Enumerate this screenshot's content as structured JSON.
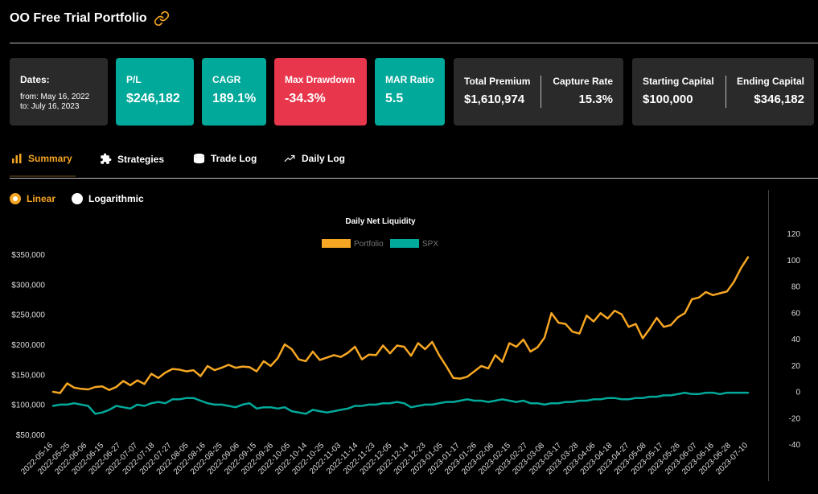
{
  "header": {
    "title": "OO Free Trial Portfolio",
    "link_icon": "link-icon"
  },
  "cards": {
    "dates": {
      "label": "Dates:",
      "from": "from: May 16, 2022",
      "to": "to: July 16, 2023"
    },
    "pl": {
      "label": "P/L",
      "value": "$246,182",
      "color": "#00a99a"
    },
    "cagr": {
      "label": "CAGR",
      "value": "189.1%",
      "color": "#00a99a"
    },
    "max_drawdown": {
      "label": "Max Drawdown",
      "value": "-34.3%",
      "color": "#e8374d"
    },
    "mar_ratio": {
      "label": "MAR Ratio",
      "value": "5.5",
      "color": "#00a99a"
    },
    "total_premium": {
      "label": "Total Premium",
      "value": "$1,610,974"
    },
    "capture_rate": {
      "label": "Capture Rate",
      "value": "15.3%"
    },
    "starting_capital": {
      "label": "Starting Capital",
      "value": "$100,000"
    },
    "ending_capital": {
      "label": "Ending Capital",
      "value": "$346,182"
    }
  },
  "tabs": [
    {
      "label": "Summary",
      "icon": "bar-chart-icon",
      "active": true
    },
    {
      "label": "Strategies",
      "icon": "puzzle-icon",
      "active": false
    },
    {
      "label": "Trade Log",
      "icon": "database-icon",
      "active": false
    },
    {
      "label": "Daily Log",
      "icon": "trending-up-icon",
      "active": false
    }
  ],
  "scale": {
    "options": [
      {
        "label": "Linear",
        "checked": true
      },
      {
        "label": "Logarithmic",
        "checked": false
      }
    ]
  },
  "chart_data": {
    "type": "line",
    "title": "Daily Net Liquidity",
    "legend_position": "top-center",
    "grid": false,
    "series": [
      {
        "name": "Portfolio",
        "axis": "left",
        "color": "#f5a623",
        "values": [
          121000,
          119000,
          135000,
          128000,
          126000,
          125000,
          129000,
          130000,
          124000,
          129000,
          139000,
          132000,
          140000,
          134000,
          151000,
          144000,
          153000,
          159000,
          158000,
          155000,
          157000,
          147000,
          164000,
          157000,
          161000,
          166000,
          161000,
          163000,
          162000,
          155000,
          172000,
          164000,
          177000,
          200000,
          192000,
          175000,
          172000,
          188000,
          174000,
          178000,
          182000,
          179000,
          186000,
          196000,
          175000,
          183000,
          182000,
          198000,
          185000,
          198000,
          196000,
          181000,
          202000,
          192000,
          204000,
          182000,
          164000,
          144000,
          143000,
          146000,
          155000,
          164000,
          160000,
          182000,
          171000,
          202000,
          196000,
          208000,
          188000,
          195000,
          211000,
          252000,
          236000,
          234000,
          221000,
          218000,
          248000,
          238000,
          252000,
          243000,
          256000,
          250000,
          229000,
          234000,
          210000,
          226000,
          244000,
          229000,
          232000,
          245000,
          252000,
          275000,
          278000,
          287000,
          282000,
          285000,
          288000,
          304000,
          327000,
          345000
        ]
      },
      {
        "name": "SPX",
        "axis": "right",
        "color": "#00a99a",
        "values": [
          -11,
          -10,
          -10,
          -9,
          -10,
          -11,
          -17,
          -16,
          -14,
          -11,
          -12,
          -13,
          -10,
          -11,
          -9,
          -8,
          -9,
          -6,
          -6,
          -5,
          -5,
          -7,
          -9,
          -10,
          -10,
          -11,
          -12,
          -10,
          -9,
          -13,
          -12,
          -12,
          -13,
          -12,
          -15,
          -16,
          -17,
          -14,
          -15,
          -16,
          -15,
          -14,
          -13,
          -11,
          -11,
          -10,
          -10,
          -9,
          -9,
          -8,
          -9,
          -12,
          -11,
          -10,
          -10,
          -9,
          -8,
          -8,
          -7,
          -6,
          -7,
          -7,
          -8,
          -7,
          -6,
          -7,
          -8,
          -7,
          -9,
          -9,
          -10,
          -9,
          -9,
          -8,
          -8,
          -7,
          -7,
          -6,
          -6,
          -5,
          -5,
          -6,
          -6,
          -5,
          -5,
          -4,
          -4,
          -3,
          -3,
          -2,
          -1,
          -2,
          -2,
          -1,
          -1,
          -2,
          -1,
          -1,
          -1,
          -1
        ]
      }
    ],
    "x_tick_labels": [
      "2022-05-16",
      "2022-05-25",
      "2022-06-06",
      "2022-06-15",
      "2022-06-27",
      "2022-07-07",
      "2022-07-18",
      "2022-07-27",
      "2022-08-05",
      "2022-08-16",
      "2022-08-25",
      "2022-09-06",
      "2022-09-15",
      "2022-09-26",
      "2022-10-05",
      "2022-10-14",
      "2022-10-25",
      "2022-11-03",
      "2022-11-14",
      "2022-11-23",
      "2022-12-05",
      "2022-12-14",
      "2022-12-23",
      "2023-01-05",
      "2023-01-17",
      "2023-01-26",
      "2023-02-06",
      "2023-02-15",
      "2023-02-27",
      "2023-03-08",
      "2023-03-17",
      "2023-03-28",
      "2023-04-06",
      "2023-04-18",
      "2023-04-27",
      "2023-05-08",
      "2023-05-17",
      "2023-05-26",
      "2023-06-07",
      "2023-06-16",
      "2023-06-28",
      "2023-07-10"
    ],
    "y_left": {
      "ticks": [
        50000,
        100000,
        150000,
        200000,
        250000,
        300000,
        350000
      ],
      "tick_labels": [
        "$50,000",
        "$100,000",
        "$150,000",
        "$200,000",
        "$250,000",
        "$300,000",
        "$350,000"
      ],
      "range": [
        50000,
        350000
      ]
    },
    "y_right": {
      "ticks": [
        -40,
        -20,
        0,
        20,
        40,
        60,
        80,
        100,
        120
      ],
      "tick_labels": [
        "-40",
        "-20",
        "0",
        "20",
        "40",
        "60",
        "80",
        "100",
        "120"
      ],
      "range": [
        -40,
        120
      ]
    }
  }
}
